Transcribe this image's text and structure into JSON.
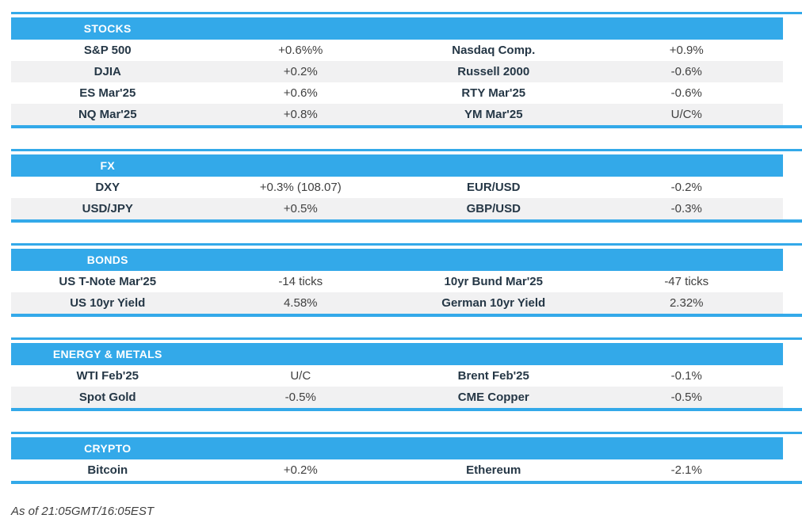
{
  "colors": {
    "accent_blue": "#33a9e9",
    "row_alt_gray": "#f1f1f2",
    "label_text": "#253746",
    "value_text": "#404040",
    "header_text": "#ffffff"
  },
  "sections": [
    {
      "title": "STOCKS",
      "rows": [
        [
          "S&P 500",
          "+0.6%%",
          "Nasdaq Comp.",
          "+0.9%"
        ],
        [
          "DJIA",
          "+0.2%",
          "Russell 2000",
          "-0.6%"
        ],
        [
          "ES Mar'25",
          "+0.6%",
          "RTY Mar'25",
          "-0.6%"
        ],
        [
          "NQ Mar'25",
          "+0.8%",
          "YM Mar'25",
          "U/C%"
        ]
      ]
    },
    {
      "title": "FX",
      "rows": [
        [
          "DXY",
          "+0.3% (108.07)",
          "EUR/USD",
          "-0.2%"
        ],
        [
          "USD/JPY",
          "+0.5%",
          "GBP/USD",
          "-0.3%"
        ]
      ]
    },
    {
      "title": "BONDS",
      "rows": [
        [
          "US T-Note Mar'25",
          "-14 ticks",
          "10yr Bund Mar'25",
          "-47 ticks"
        ],
        [
          "US 10yr Yield",
          "4.58%",
          "German 10yr Yield",
          "2.32%"
        ]
      ]
    },
    {
      "title": "ENERGY & METALS",
      "rows": [
        [
          "WTI Feb'25",
          "U/C",
          "Brent Feb'25",
          "-0.1%"
        ],
        [
          "Spot Gold",
          "-0.5%",
          "CME Copper",
          "-0.5%"
        ]
      ]
    },
    {
      "title": "CRYPTO",
      "rows": [
        [
          "Bitcoin",
          "+0.2%",
          "Ethereum",
          "-2.1%"
        ]
      ]
    }
  ],
  "footer": {
    "timestamp_note": "As of 21:05GMT/16:05EST"
  }
}
